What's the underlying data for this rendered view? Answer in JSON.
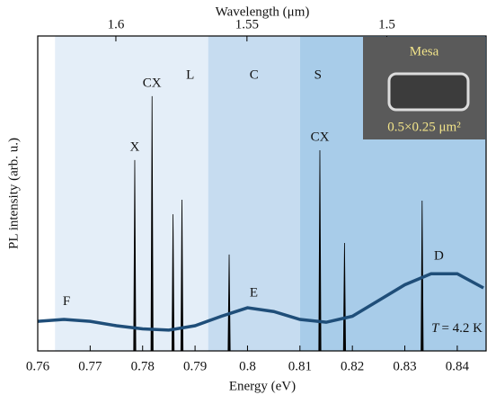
{
  "chart_data": {
    "type": "spectrum",
    "xlabel": "Energy (eV)",
    "ylabel": "PL intensity (arb. u.)",
    "x2label": "Wavelength (μm)",
    "xlim": [
      0.76,
      0.8455
    ],
    "xticks": [
      0.76,
      0.77,
      0.78,
      0.79,
      0.8,
      0.81,
      0.82,
      0.83,
      0.84
    ],
    "x2ticks": [
      1.6,
      1.55,
      1.5
    ],
    "ylim": [
      0,
      1
    ],
    "bands": [
      {
        "name": "L",
        "start": 0.7633,
        "end": 0.7925,
        "color": "#e4eef8"
      },
      {
        "name": "C",
        "start": 0.7925,
        "end": 0.81,
        "color": "#c6dcf0"
      },
      {
        "name": "S",
        "start": 0.81,
        "end": 0.8455,
        "color": "#a8cce9"
      }
    ],
    "curve": {
      "color": "#1f4e79",
      "x": [
        0.76,
        0.765,
        0.77,
        0.775,
        0.78,
        0.785,
        0.79,
        0.795,
        0.8,
        0.805,
        0.81,
        0.815,
        0.82,
        0.825,
        0.83,
        0.835,
        0.84,
        0.845
      ],
      "values": [
        0.094,
        0.1,
        0.094,
        0.08,
        0.07,
        0.066,
        0.08,
        0.11,
        0.137,
        0.125,
        0.1,
        0.091,
        0.11,
        0.16,
        0.21,
        0.245,
        0.245,
        0.2
      ]
    },
    "curve_labels": [
      {
        "text": "F",
        "x": 0.7655,
        "y": 0.155
      },
      {
        "text": "E",
        "x": 0.8012,
        "y": 0.183
      },
      {
        "text": "D",
        "x": 0.8365,
        "y": 0.3
      }
    ],
    "peaks": {
      "color": "#000000",
      "x": [
        0.7785,
        0.7818,
        0.7858,
        0.7875,
        0.7965,
        0.8138,
        0.8185,
        0.8333
      ],
      "values": [
        0.606,
        0.809,
        0.434,
        0.48,
        0.306,
        0.637,
        0.343,
        0.477
      ]
    },
    "peak_labels": [
      {
        "text": "X",
        "peak": 0
      },
      {
        "text": "CX",
        "peak": 1
      },
      {
        "text": "CX",
        "peak": 5
      }
    ],
    "annotation_T": "T",
    "annotation_temp": "= 4.2 K",
    "inset": {
      "title": "Mesa",
      "size": "0.5×0.25 μm²"
    }
  }
}
